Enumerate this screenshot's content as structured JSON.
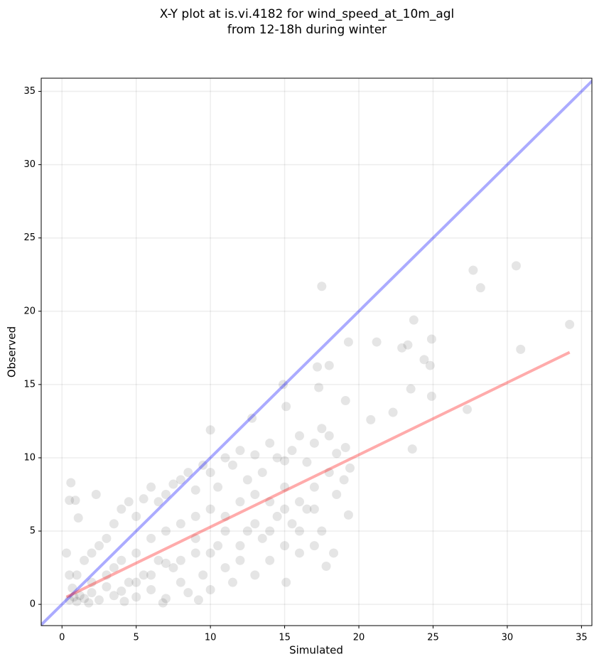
{
  "chart_data": {
    "type": "scatter",
    "title": [
      "X-Y plot at is.vi.4182 for wind_speed_at_10m_agl",
      "from 12-18h during winter"
    ],
    "x_label": "Simulated",
    "y_label": "Observed",
    "xlim": [
      -1.4,
      35.7
    ],
    "ylim": [
      -1.45,
      35.9
    ],
    "xticks": [
      0,
      5,
      10,
      15,
      20,
      25,
      30,
      35
    ],
    "yticks": [
      0,
      5,
      10,
      15,
      20,
      25,
      30,
      35
    ],
    "grid": true,
    "series": [
      {
        "color": "#000000",
        "opacity": 0.1,
        "x": [
          17.5,
          27.7,
          28.2,
          30.6,
          34.2,
          30.9,
          23.7,
          24.9,
          23.3,
          22.9,
          21.2,
          19.3,
          24.4,
          24.8,
          27.3,
          23.5,
          24.9,
          23.6,
          22.3,
          20.8,
          17.2,
          18,
          17.3,
          14.9,
          15.1,
          10,
          12.8,
          0.6,
          0.5,
          0.9,
          2.3,
          1.1,
          19.4,
          19.3,
          18.3,
          17.8,
          15.1,
          19.1,
          19.1,
          0.5,
          0.8,
          1,
          1.2,
          0.7,
          1.5,
          2,
          2.5,
          3,
          3.5,
          4,
          4.5,
          5,
          5.5,
          6,
          6.5,
          7,
          7.5,
          8,
          8.5,
          9,
          9.5,
          10,
          10.5,
          11,
          11.5,
          12,
          12.5,
          13,
          13.5,
          14,
          14.5,
          15,
          15.5,
          16,
          16.5,
          17,
          17.5,
          18,
          18.5,
          19,
          1,
          1.5,
          2,
          2.5,
          3,
          3.5,
          4,
          4.5,
          5,
          5.5,
          6,
          6.5,
          7,
          7.5,
          8,
          8.5,
          9,
          9.5,
          10,
          10.5,
          11,
          11.5,
          12,
          12.5,
          13,
          13.5,
          14,
          14.5,
          15,
          15.5,
          16,
          16.5,
          17,
          17.5,
          18,
          18.5,
          3,
          4,
          5,
          6,
          7,
          8,
          9,
          10,
          11,
          12,
          13,
          14,
          15,
          16,
          17,
          6,
          8,
          10,
          12,
          14,
          16,
          17,
          2,
          3.5,
          5,
          7,
          9,
          11,
          13,
          15,
          0.3,
          0.5,
          1.8,
          4.2,
          6.8,
          9.2
        ],
        "values": [
          21.7,
          22.8,
          21.6,
          23.1,
          19.1,
          17.4,
          19.4,
          18.1,
          17.7,
          17.5,
          17.9,
          17.9,
          16.7,
          16.3,
          13.3,
          14.7,
          14.2,
          10.6,
          13.1,
          12.6,
          16.2,
          16.3,
          14.8,
          15,
          13.5,
          11.9,
          12.7,
          8.3,
          7.1,
          7.1,
          7.5,
          5.9,
          9.3,
          6.1,
          3.5,
          2.6,
          1.5,
          10.7,
          13.9,
          0.3,
          0.5,
          0.2,
          0.6,
          1.1,
          0.4,
          0.8,
          0.3,
          1.2,
          0.6,
          0.9,
          1.5,
          0.5,
          2,
          1,
          3,
          0.4,
          2.5,
          1.5,
          0.8,
          3.5,
          2,
          1,
          4,
          2.5,
          1.5,
          3,
          5,
          2,
          4.5,
          3,
          6,
          4,
          5.5,
          7,
          6.5,
          8,
          5,
          9,
          7.5,
          8.5,
          2,
          3,
          3.5,
          4,
          4.5,
          5.5,
          6.5,
          7,
          6,
          7.2,
          8,
          7,
          7.5,
          8.2,
          8.5,
          9,
          7.8,
          9.5,
          9,
          8,
          10,
          9.5,
          10.5,
          8.5,
          10.2,
          9,
          11,
          10,
          9.8,
          10.5,
          11.5,
          9.7,
          11,
          12,
          11.5,
          10.3,
          2,
          3,
          3.5,
          4.5,
          5,
          5.5,
          6,
          6.5,
          6,
          7,
          7.5,
          7,
          8,
          5,
          6.5,
          2,
          3,
          3.5,
          4,
          5,
          3.5,
          4,
          1.5,
          2.5,
          1.5,
          2.8,
          4.5,
          5,
          5.5,
          6.5,
          3.5,
          2,
          0.1,
          0.2,
          0.1,
          0.3
        ]
      }
    ],
    "lines": [
      {
        "color": "#0000ff",
        "opacity": 0.33,
        "x": [
          -1.45,
          35.9
        ],
        "values": [
          -1.45,
          35.9
        ]
      },
      {
        "color": "#ff0000",
        "opacity": 0.33,
        "x": [
          0.3,
          34.2
        ],
        "values": [
          0.5,
          17.2
        ]
      }
    ]
  }
}
